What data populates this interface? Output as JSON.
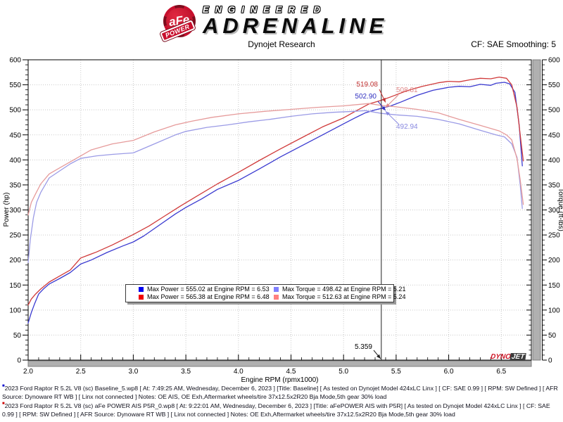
{
  "header": {
    "logo": {
      "afe": "aFe",
      "power": "POWER",
      "engineered": "ENGINEERED",
      "adrenaline": "ADRENALINE"
    },
    "title": "Dynojet Research",
    "smoothing": "CF: SAE Smoothing: 5"
  },
  "chart_data": {
    "type": "line",
    "xlabel": "Engine RPM (rpmx1000)",
    "ylabel_left": "Power (hp)",
    "ylabel_right": "Torque (ft-lbs)",
    "xlim": [
      2.0,
      6.786
    ],
    "ylim": [
      0,
      600
    ],
    "x_ticks": [
      2.0,
      2.5,
      3.0,
      3.5,
      4.0,
      4.5,
      5.0,
      5.5,
      6.0,
      6.5
    ],
    "x_minor_step": 0.1,
    "y_ticks": [
      0,
      50,
      100,
      150,
      200,
      250,
      300,
      350,
      400,
      450,
      500,
      550,
      600
    ],
    "y_minor_step": 10,
    "grid": "dotted",
    "cursor": {
      "rpm": 5.359,
      "label": "5.359"
    },
    "series": [
      {
        "name": "power-baseline",
        "legend": "Max Power = 555.02 at Engine RPM = 6.53",
        "color": "#3a3ad0",
        "legend_color": "#0000f0",
        "x": [
          2.0,
          2.03,
          2.06,
          2.1,
          2.15,
          2.2,
          2.3,
          2.4,
          2.5,
          2.6,
          2.75,
          2.9,
          3.0,
          3.1,
          3.25,
          3.4,
          3.5,
          3.65,
          3.8,
          4.0,
          4.2,
          4.4,
          4.6,
          4.8,
          5.0,
          5.1,
          5.21,
          5.3,
          5.359,
          5.45,
          5.55,
          5.7,
          5.85,
          6.0,
          6.1,
          6.2,
          6.3,
          6.4,
          6.45,
          6.53,
          6.58,
          6.63,
          6.67,
          6.7
        ],
        "y": [
          74,
          95,
          112,
          132,
          143,
          152,
          163,
          175,
          192,
          200,
          215,
          228,
          236,
          248,
          270,
          292,
          305,
          322,
          341,
          359,
          382,
          406,
          428,
          450,
          472,
          483,
          494.4,
          500,
          502.9,
          508,
          516,
          529,
          539,
          545,
          547,
          546,
          551,
          549,
          553,
          555.02,
          552,
          535,
          470,
          388
        ]
      },
      {
        "name": "power-afe",
        "legend": "Max Power = 565.38 at Engine RPM = 6.48",
        "color": "#d03a3a",
        "legend_color": "#f00000",
        "x": [
          2.0,
          2.03,
          2.07,
          2.12,
          2.2,
          2.3,
          2.4,
          2.5,
          2.65,
          2.8,
          3.0,
          3.15,
          3.3,
          3.45,
          3.6,
          3.8,
          4.0,
          4.2,
          4.4,
          4.6,
          4.8,
          5.0,
          5.12,
          5.24,
          5.359,
          5.45,
          5.6,
          5.75,
          5.9,
          6.0,
          6.1,
          6.2,
          6.3,
          6.4,
          6.48,
          6.55,
          6.6,
          6.65,
          6.68,
          6.71
        ],
        "y": [
          110,
          122,
          132,
          142,
          156,
          168,
          180,
          204,
          216,
          230,
          251,
          268,
          288,
          308,
          327,
          352,
          375,
          399,
          422,
          444,
          466,
          484,
          498,
          511.6,
          519.1,
          526,
          538,
          547,
          554,
          557,
          556,
          560,
          563,
          562,
          565.38,
          563,
          550,
          505,
          450,
          398
        ]
      },
      {
        "name": "torque-baseline",
        "legend": "Max Torque = 498.42 at Engine RPM = 5.21",
        "color": "#9b9be6",
        "legend_color": "#8080ff",
        "x": [
          2.0,
          2.02,
          2.05,
          2.08,
          2.12,
          2.2,
          2.3,
          2.4,
          2.5,
          2.65,
          2.8,
          3.0,
          3.2,
          3.4,
          3.5,
          3.7,
          3.9,
          4.1,
          4.3,
          4.5,
          4.7,
          4.9,
          5.1,
          5.21,
          5.359,
          5.5,
          5.7,
          5.9,
          6.1,
          6.3,
          6.45,
          6.53,
          6.6,
          6.65,
          6.68,
          6.7
        ],
        "y": [
          195,
          240,
          285,
          315,
          335,
          364,
          378,
          392,
          403,
          408,
          411,
          414,
          432,
          450,
          457,
          465,
          470,
          476,
          481,
          487,
          492,
          495,
          497,
          498.42,
          492.94,
          490,
          487,
          481,
          472,
          459,
          450,
          446,
          432,
          405,
          350,
          303
        ]
      },
      {
        "name": "torque-afe",
        "legend": "Max Torque = 512.63 at Engine RPM = 5.24",
        "color": "#e69b9b",
        "legend_color": "#ff8080",
        "x": [
          2.0,
          2.03,
          2.07,
          2.12,
          2.2,
          2.3,
          2.45,
          2.6,
          2.8,
          3.0,
          3.2,
          3.4,
          3.55,
          3.75,
          4.0,
          4.25,
          4.5,
          4.75,
          5.0,
          5.24,
          5.359,
          5.5,
          5.7,
          5.9,
          6.1,
          6.3,
          6.48,
          6.55,
          6.6,
          6.65,
          6.68,
          6.71
        ],
        "y": [
          290,
          315,
          332,
          352,
          372,
          384,
          402,
          420,
          432,
          439,
          456,
          470,
          477,
          485,
          492,
          497,
          501,
          505,
          508,
          512.63,
          508.81,
          506,
          501,
          494,
          481,
          469,
          458,
          450,
          440,
          402,
          360,
          311
        ]
      }
    ],
    "annotations": [
      {
        "label": "519.08",
        "color": "#c03030",
        "rpm": 5.359,
        "value": 519.08
      },
      {
        "label": "502.90",
        "color": "#3030c0",
        "rpm": 5.359,
        "value": 502.9
      },
      {
        "label": "508.81",
        "color": "#e08888",
        "rpm": 5.359,
        "value": 508.81
      },
      {
        "label": "492.94",
        "color": "#8888e0",
        "rpm": 5.359,
        "value": 492.94
      }
    ],
    "legend_order": [
      "power-baseline",
      "torque-baseline",
      "power-afe",
      "torque-afe"
    ]
  },
  "dynojet": {
    "dyno": "DYNO",
    "jet": "JET"
  },
  "footer": {
    "runs": [
      {
        "color": "#0000cc",
        "text": "2023 Ford Raptor R 5.2L V8 (sc) Baseline_5.wp8 [ At: 7:49:25 AM, Wednesday, December 6, 2023 ] [Title: Baseline]  [ As tested on Dynojet Model 424xLC Linx ] [ CF: SAE 0.99 ] [ RPM: SW Defined ] [ AFR Source: Dynoware RT WB ] [ Linx not connected ] Notes: OE AIS, OE Exh,Aftermarket wheels/tire 37x12.5x2R20 Bja Mode,5th gear 30% load"
      },
      {
        "color": "#cc0000",
        "text": "2023 Ford Raptor R 5.2L V8 (sc) aFe POWER AIS P5R_0.wp8 [ At: 9:22:01 AM, Wednesday, December 6, 2023 ] [Title: aFePOWER AIS with P5R]  [ As tested on Dynojet Model 424xLC Linx ] [ CF: SAE 0.99 ] [ RPM: SW Defined ] [ AFR Source: Dynoware RT WB ] [ Linx not connected ] Notes: OE Exh,Aftermarket wheels/tire 37x12.5x2R20 Bja Mode,5th gear 30% load"
      }
    ]
  }
}
